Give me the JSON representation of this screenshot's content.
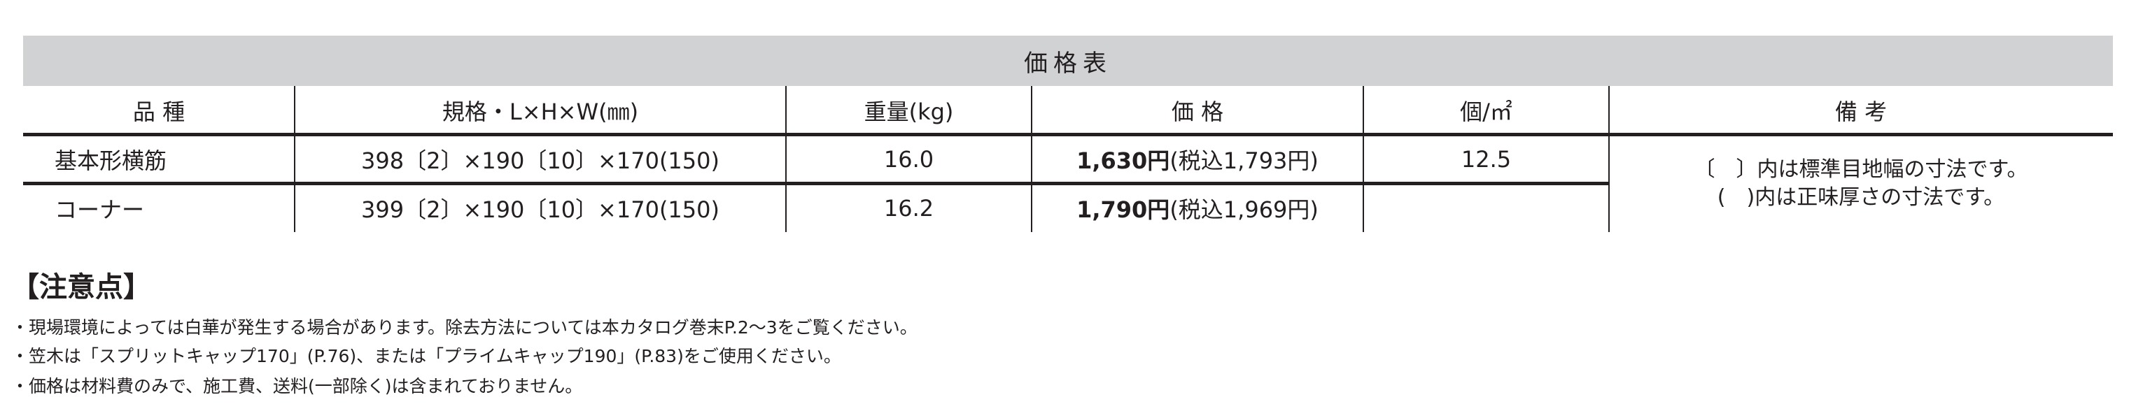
{
  "table": {
    "title": "価格表",
    "headers": [
      "品 種",
      "規格・L×H×W(㎜)",
      "重量(kg)",
      "価 格",
      "個/㎡",
      "備 考"
    ],
    "rows": [
      {
        "name": "基本形横筋",
        "spec": "398〔2〕×190〔10〕×170(150)",
        "weight": "16.0",
        "price": "1,630円",
        "price_tax": "(税込1,793円)",
        "per_sqm": "12.5"
      },
      {
        "name": "コーナー",
        "spec": "399〔2〕×190〔10〕×170(150)",
        "weight": "16.2",
        "price": "1,790円",
        "price_tax": "(税込1,969円)",
        "per_sqm": ""
      }
    ],
    "remarks": [
      "〔　〕内は標準目地幅の寸法です。",
      "(　)内は正味厚さの寸法です。"
    ]
  },
  "notes": {
    "title": "【注意点】",
    "items": [
      "・現場環境によっては白華が発生する場合があります。除去方法については本カタログ巻末P.2～3をご覧ください。",
      "・笠木は「スプリットキャップ170」(P.76)、または「プライムキャップ190」(P.83)をご使用ください。",
      "・価格は材料費のみで、施工費、送料(一部除く)は含まれておりません。"
    ]
  },
  "colors": {
    "header_band": "#d1d2d4",
    "text": "#231f20"
  }
}
